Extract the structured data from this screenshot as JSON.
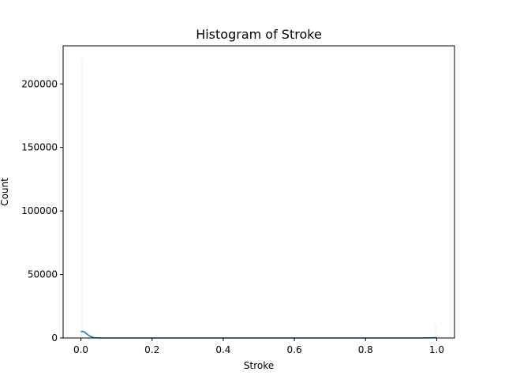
{
  "chart_data": {
    "type": "bar",
    "title": "Histogram of Stroke",
    "xlabel": "Stroke",
    "ylabel": "Count",
    "xlim": [
      -0.05,
      1.05
    ],
    "ylim": [
      0,
      230000
    ],
    "x_ticks": [
      0.0,
      0.2,
      0.4,
      0.6,
      0.8,
      1.0
    ],
    "x_tick_labels": [
      "0.0",
      "0.2",
      "0.4",
      "0.6",
      "0.8",
      "1.0"
    ],
    "y_ticks": [
      0,
      50000,
      100000,
      150000,
      200000
    ],
    "y_tick_labels": [
      "0",
      "50000",
      "100000",
      "150000",
      "200000"
    ],
    "grid": false,
    "bar_color": "#1f77b4",
    "bins": [
      {
        "x0": 0.0,
        "x1": 0.005,
        "count": 219600
      },
      {
        "x0": 0.995,
        "x1": 1.0,
        "count": 10200
      }
    ],
    "kde": {
      "x": [
        0.0,
        0.005,
        0.01,
        0.015,
        0.02,
        0.025,
        0.03,
        0.035,
        0.04,
        0.05,
        0.07,
        0.1,
        0.3,
        0.5,
        0.7,
        0.9,
        0.95,
        0.98,
        1.0
      ],
      "y": [
        5000,
        5200,
        4700,
        3600,
        2500,
        1500,
        800,
        400,
        180,
        40,
        0,
        0,
        0,
        0,
        0,
        0,
        0,
        100,
        250
      ],
      "color": "#1f77b4"
    }
  }
}
